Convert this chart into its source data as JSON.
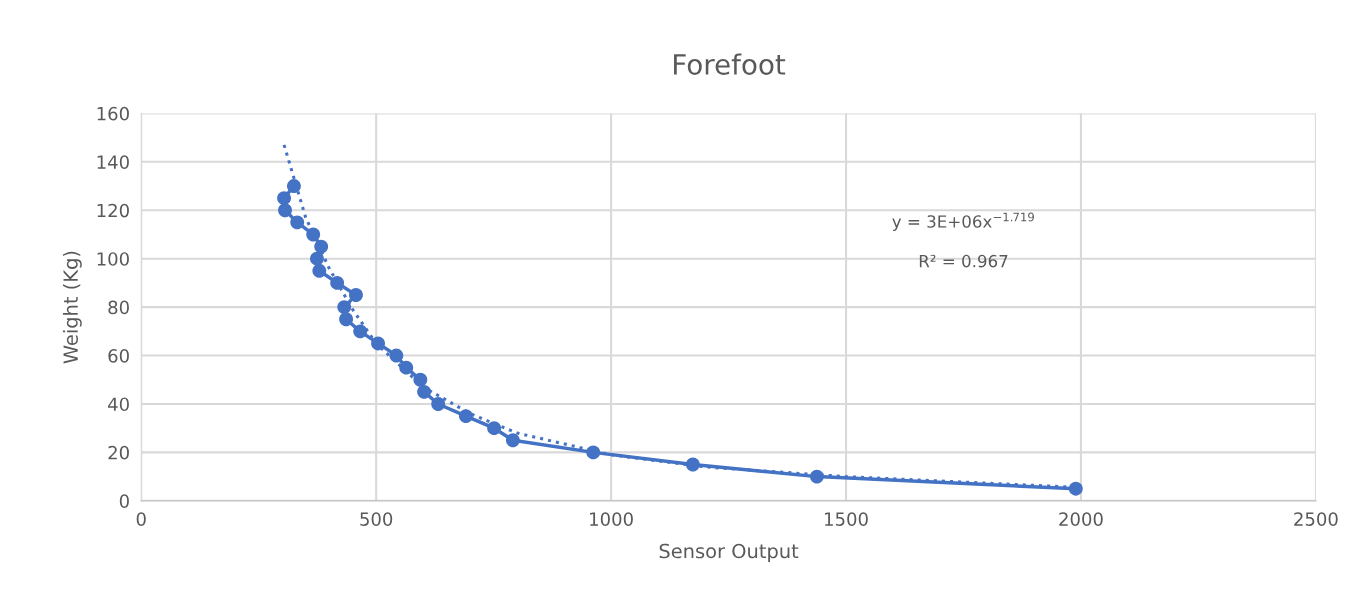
{
  "chart_data": {
    "type": "line",
    "title": "Forefoot",
    "xlabel": "Sensor Output",
    "ylabel": "Weight (Kg)",
    "series": [
      {
        "color": "#4472c4",
        "marker": "circle",
        "line_style": "solid",
        "x": [
          325,
          304,
          306,
          332,
          366,
          383,
          374,
          379,
          417,
          457,
          432,
          436,
          466,
          504,
          543,
          564,
          594,
          602,
          632,
          691,
          751,
          791,
          962,
          1174,
          1438,
          1989
        ],
        "values": [
          130,
          125,
          120,
          115,
          110,
          105,
          100,
          95,
          90,
          85,
          80,
          75,
          70,
          65,
          60,
          55,
          50,
          45,
          40,
          35,
          30,
          25,
          20,
          15,
          10,
          5
        ]
      },
      {
        "type": "line",
        "color": "#4472c4",
        "marker": "none",
        "line_style": "dotted",
        "x": [
          304,
          350,
          400,
          450,
          500,
          600,
          700,
          800,
          1000,
          1200,
          1500,
          2000
        ],
        "values": [
          147,
          117,
          96,
          79,
          65,
          47,
          36,
          28,
          19,
          14,
          10,
          5.5
        ]
      }
    ],
    "annotations": [
      "y = 3E+06x$^{−1.719}$",
      "R² = 0.967"
    ],
    "xlim": [
      0,
      2500
    ],
    "xticks": [
      0,
      500,
      1000,
      1500,
      2000,
      2500
    ],
    "ylim": [
      0,
      160
    ],
    "yticks": [
      0,
      20,
      40,
      60,
      80,
      100,
      120,
      140,
      160
    ],
    "grid": true,
    "legend": false
  }
}
